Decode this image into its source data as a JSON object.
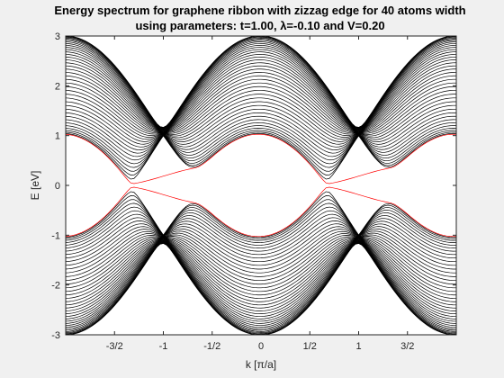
{
  "figure": {
    "title_line1": "Energy spectrum for graphene ribbon with zizzag edge for 40 atoms width",
    "title_line2": "using parameters: t=1.00, λ=-0.10 and V=0.20"
  },
  "chart_data": {
    "type": "line",
    "title": "Energy spectrum for graphene ribbon with zizzag edge for 40 atoms width using parameters: t=1.00, λ=-0.10 and V=0.20",
    "xlabel": "k [π/a]",
    "ylabel": "E [eV]",
    "xlim": [
      -2,
      2
    ],
    "ylim": [
      -3,
      3
    ],
    "grid": false,
    "params": {
      "t": 1.0,
      "lambda": -0.1,
      "V": 0.2,
      "width_atoms": 40
    },
    "x_ticks": [
      -1.5,
      -1,
      -0.5,
      0,
      0.5,
      1,
      1.5
    ],
    "x_tick_labels": [
      "-3/2",
      "-1",
      "-1/2",
      "0",
      "1/2",
      "1",
      "3/2"
    ],
    "y_ticks": [
      -3,
      -2,
      -1,
      0,
      1,
      2,
      3
    ],
    "y_tick_labels": [
      "-3",
      "-2",
      "-1",
      "0",
      "1",
      "2",
      "3"
    ],
    "bulk_band_count_per_side": 40,
    "bulk_color": "#000000",
    "edge_color": "#ff0000",
    "dirac_points_k": [
      -1,
      1
    ],
    "edge_crossings_k": [
      -0.67,
      1.33
    ],
    "edge_state_energy_range": [
      -1.3,
      1.3
    ]
  }
}
